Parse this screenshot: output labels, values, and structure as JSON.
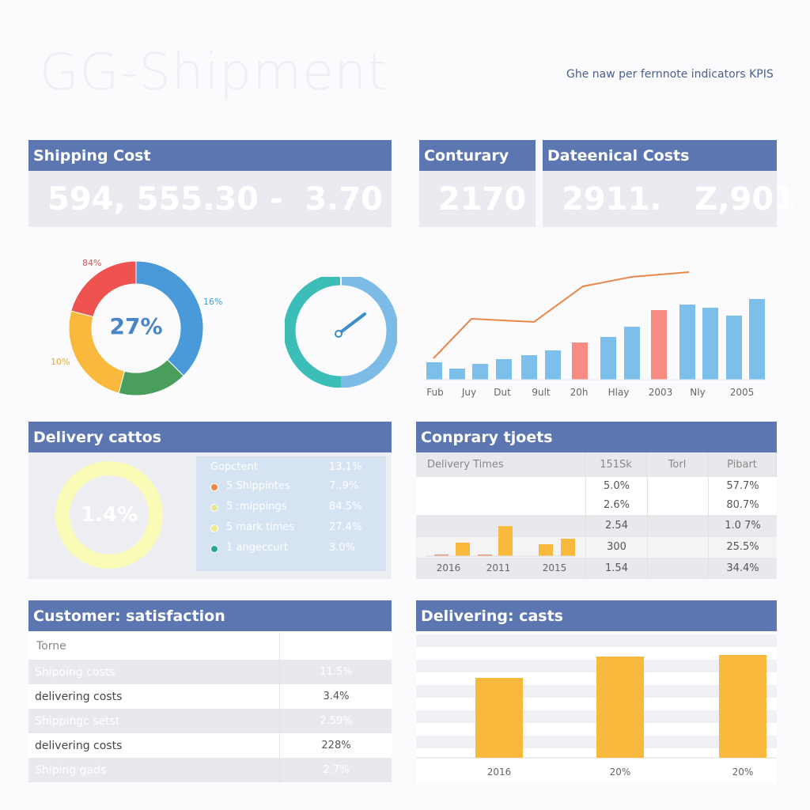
{
  "header": {
    "title": "GG-Shipment",
    "subtitle": "Ghe naw per fernnote indicators KPIS"
  },
  "kpis": [
    {
      "title": "Shipping Cost",
      "value": "594, 555.30 -  3.70"
    },
    {
      "title": "Conturary",
      "value": "2170"
    },
    {
      "title": "Dateenical Costs",
      "value": "2911.   Z,901"
    }
  ],
  "donut": {
    "center": "27%",
    "labels": [
      "84%",
      "16%",
      "10%"
    ],
    "colors": {
      "red": "#ef5350",
      "blue": "#4a9ad9",
      "green": "#4a9e5c",
      "yellow": "#f9b93c"
    }
  },
  "gauge": {
    "colors": [
      "#3bbdb8",
      "#7bbbe6"
    ]
  },
  "trend_chart": {
    "bars": [
      22,
      14,
      20,
      26,
      31,
      37,
      47,
      54,
      67,
      88,
      95,
      91,
      81,
      102
    ],
    "highlighted": [
      6,
      9
    ],
    "line": [
      27,
      77,
      73,
      118,
      130,
      136
    ],
    "xlabels": [
      "Fub",
      "Juy",
      "Dut",
      "9ult",
      "20h",
      "Hlay",
      "2003",
      "Nly",
      "2005"
    ],
    "colors": {
      "bar": "#7bbfea",
      "highlight": "#f78b84",
      "line": "#e8874a"
    }
  },
  "delivery": {
    "title": "Delivery cattos",
    "donut_value": "1.4%",
    "legend_header": {
      "label": "Gopctent",
      "value": "13.1%"
    },
    "legend": [
      {
        "label": "5 Shippintes",
        "value": "7.,9%",
        "color": "#e88a4c"
      },
      {
        "label": "5 :mippings",
        "value": "84.5%",
        "color": "#e6e79a"
      },
      {
        "label": "5 mark times",
        "value": "27.4%",
        "color": "#f1eb8f"
      },
      {
        "label": "1 angeccurt",
        "value": "3.0%",
        "color": "#2aa597"
      }
    ]
  },
  "company": {
    "title": "Conprary tjoets",
    "columns": [
      "Delivery Times",
      "151Sk",
      "Torl",
      "Pibart"
    ],
    "rows": [
      [
        "5.0%",
        "",
        "57.7%"
      ],
      [
        "2.6%",
        "",
        "80.7%"
      ],
      [
        "2.54",
        "",
        "1.0 7%"
      ],
      [
        "300",
        "",
        "25.5%"
      ],
      [
        "1.54",
        "",
        "34.4%"
      ]
    ],
    "mini_chart": {
      "xlabels": [
        "2016",
        "2011",
        "2015"
      ],
      "bars": [
        2,
        17,
        2,
        38,
        15,
        22
      ]
    }
  },
  "satisfaction": {
    "title": "Customer: satisfaction",
    "column": "Torne",
    "rows": [
      [
        "Shipoing costs",
        "11.5%"
      ],
      [
        "delivering costs",
        "3.4%"
      ],
      [
        "Shippingc setst",
        "2.59%"
      ],
      [
        "delivering costs",
        "228%"
      ],
      [
        "Shiping gads",
        "2.7%"
      ]
    ]
  },
  "delivering": {
    "title": "Delivering: casts",
    "xlabels": [
      "2016",
      "20%",
      "20%"
    ],
    "bars": [
      101,
      128,
      130
    ],
    "color": "#f9b93c"
  }
}
